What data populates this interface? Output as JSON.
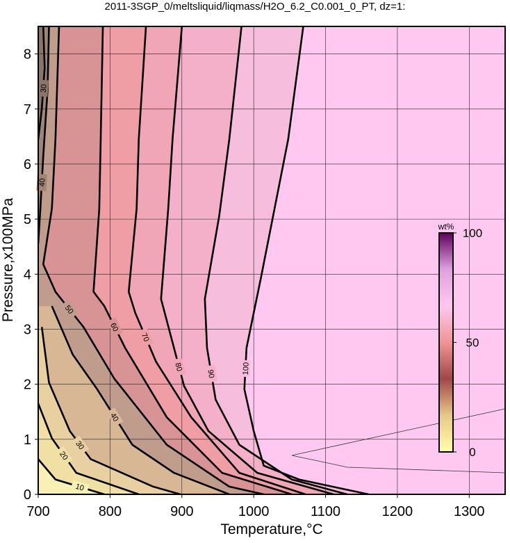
{
  "chart_data": {
    "type": "contour",
    "title": "2011-3SGP_0/meltsliquid/liqmass/H2O_6.2_C0.001_0_PT, dz=1:",
    "x_label": "Temperature,°C",
    "y_label": "Pressure,x100MPa",
    "xlim": [
      700,
      1350
    ],
    "xticks": [
      700,
      800,
      900,
      1000,
      1100,
      1200,
      1300
    ],
    "ylim": [
      0,
      8.5
    ],
    "yticks": [
      0,
      1,
      2,
      3,
      4,
      5,
      6,
      7,
      8
    ],
    "grid": true,
    "background_color": "#ffc8f0",
    "contours": [
      {
        "level": 100,
        "fill": "#f6bedc",
        "x": [
          1069,
          1048,
          1029,
          1010,
          990,
          987,
          1000,
          1014,
          1063,
          1160
        ],
        "y": [
          8.5,
          6.45,
          5.19,
          3.93,
          2.66,
          1.91,
          1.15,
          0.52,
          0.27,
          0
        ]
      },
      {
        "level": 90,
        "fill": "#f3b0c8",
        "x": [
          983,
          966,
          952,
          932,
          935,
          947,
          980,
          1053,
          1130
        ],
        "y": [
          8.5,
          6.45,
          5.06,
          3.55,
          2.66,
          1.72,
          0.9,
          0.27,
          0
        ]
      },
      {
        "level": 80,
        "fill": "#f0a6b6",
        "x": [
          900,
          887,
          881,
          871,
          889,
          903,
          937,
          1005,
          1111
        ],
        "y": [
          8.5,
          6.45,
          5.19,
          3.55,
          2.66,
          1.97,
          1.15,
          0.39,
          0
        ]
      },
      {
        "level": 70,
        "fill": "#ee9ea4",
        "x": [
          850,
          840,
          837,
          826,
          835,
          864,
          913,
          980,
          1072
        ],
        "y": [
          8.5,
          6.45,
          5.19,
          3.68,
          3.3,
          2.41,
          1.4,
          0.39,
          0
        ]
      },
      {
        "level": 60,
        "fill": "#d89494",
        "x": [
          790,
          787,
          785,
          777,
          792,
          821,
          879,
          956,
          1053
        ],
        "y": [
          8.5,
          6.45,
          5.19,
          3.68,
          3.42,
          2.66,
          1.4,
          0.39,
          0
        ]
      },
      {
        "level": 50,
        "fill": "#c09c8c",
        "x": [
          729,
          724,
          719,
          707,
          724,
          763,
          806,
          879,
          966,
          1014
        ],
        "y": [
          8.5,
          6.45,
          5.19,
          4.18,
          3.68,
          3.04,
          2.1,
          0.9,
          0.14,
          0
        ]
      },
      {
        "level": 40,
        "fill": "#d8b894",
        "x": [
          719,
          748,
          782,
          831,
          889,
          966
        ],
        "y": [
          3.42,
          2.54,
          1.91,
          0.9,
          0.39,
          0
        ]
      },
      {
        "level": 30,
        "fill": "#e8d0a0",
        "x": [
          705,
          715,
          744,
          773,
          860,
          898
        ],
        "y": [
          3.04,
          2.03,
          1.15,
          0.64,
          0.14,
          0
        ]
      },
      {
        "level": 20,
        "fill": "#f0e0a4",
        "x": [
          700,
          719,
          753,
          840
        ],
        "y": [
          1.65,
          1.02,
          0.39,
          0
        ]
      },
      {
        "level": 10,
        "fill": "#f8f0b4",
        "x": [
          700,
          724,
          792
        ],
        "y": [
          0.64,
          0.27,
          0
        ]
      },
      {
        "level": 40,
        "fill": "#a08474",
        "x": [
          715,
          713,
          707,
          703,
          700
        ],
        "y": [
          8.5,
          7.34,
          6.14,
          5.19,
          4.56
        ]
      },
      {
        "level": 30,
        "fill": "#8c7468",
        "x": [
          707,
          709,
          705,
          700
        ],
        "y": [
          8.5,
          7.75,
          7.0,
          6.45
        ]
      }
    ],
    "colorbar": {
      "label": "wt%",
      "lim": [
        0,
        100
      ],
      "ticks": [
        0,
        50,
        100
      ],
      "colors": [
        "#ffffa8",
        "#e8c888",
        "#a04848",
        "#f09494",
        "#ffc8f0",
        "#e0a0e0",
        "#600060"
      ]
    }
  }
}
